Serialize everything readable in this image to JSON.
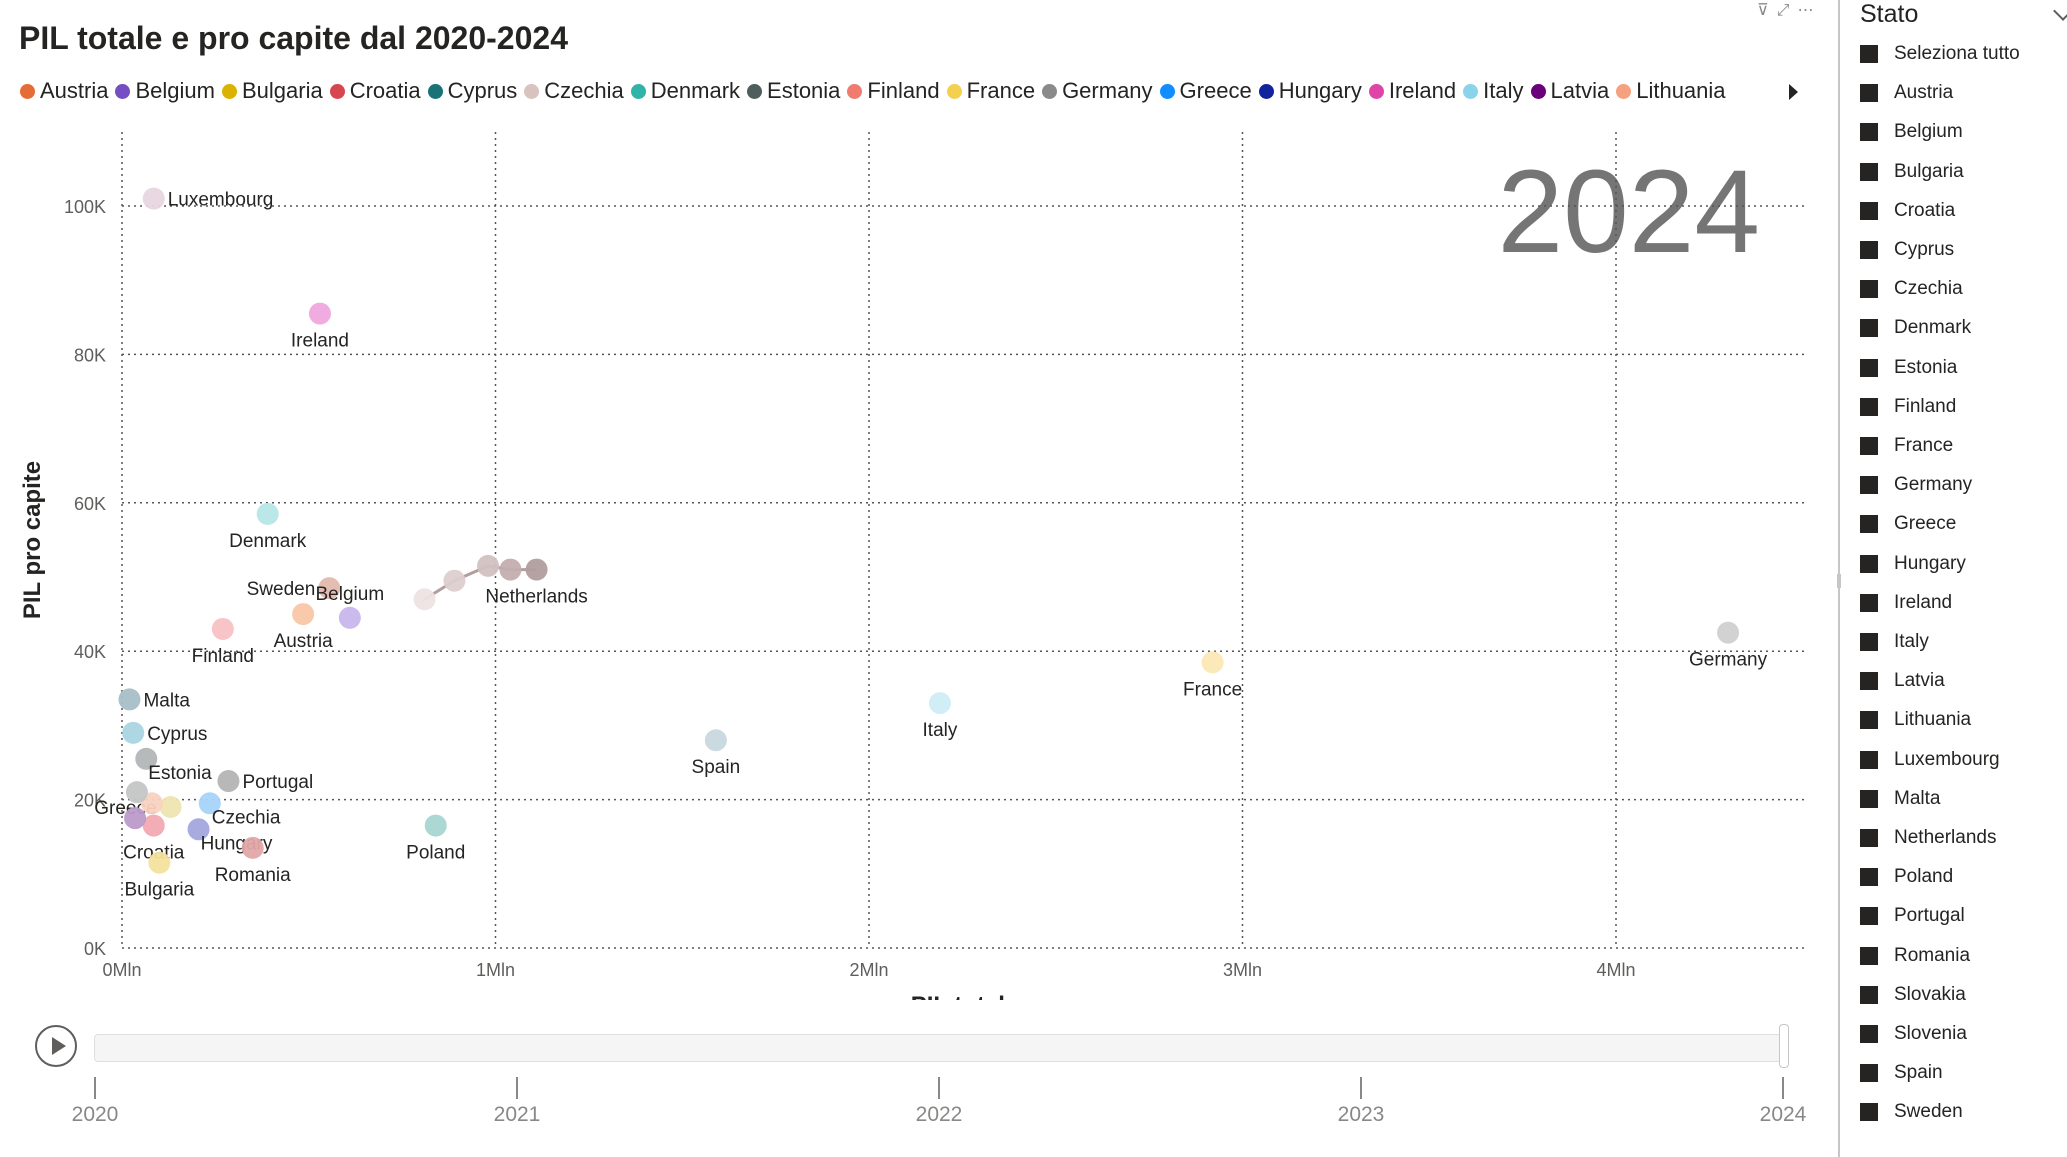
{
  "title": "PIL totale e pro capite dal 2020-2024",
  "header_icons": [
    "filter-icon",
    "focus-mode-icon",
    "more-options-icon"
  ],
  "legend": {
    "items": [
      {
        "name": "Austria",
        "color": "#E66C37"
      },
      {
        "name": "Belgium",
        "color": "#744EC2"
      },
      {
        "name": "Bulgaria",
        "color": "#D9B300"
      },
      {
        "name": "Croatia",
        "color": "#D64550"
      },
      {
        "name": "Cyprus",
        "color": "#197278"
      },
      {
        "name": "Czechia",
        "color": "#D9C2BF"
      },
      {
        "name": "Denmark",
        "color": "#2FB4A7"
      },
      {
        "name": "Estonia",
        "color": "#4F5D5D"
      },
      {
        "name": "Finland",
        "color": "#F07C70"
      },
      {
        "name": "France",
        "color": "#F5CF4E"
      },
      {
        "name": "Germany",
        "color": "#8A8A8A"
      },
      {
        "name": "Greece",
        "color": "#118DFF"
      },
      {
        "name": "Hungary",
        "color": "#12239E"
      },
      {
        "name": "Ireland",
        "color": "#E044A7"
      },
      {
        "name": "Italy",
        "color": "#8AD4EB"
      },
      {
        "name": "Latvia",
        "color": "#6B007B"
      },
      {
        "name": "Lithuania",
        "color": "#F5A07F"
      }
    ]
  },
  "chart_data": {
    "type": "scatter",
    "title": "PIL totale e pro capite dal 2020-2024",
    "xlabel": "PIL totale",
    "ylabel": "PIL pro capite",
    "xlim": [
      0,
      4.8
    ],
    "ylim": [
      0,
      110
    ],
    "x_unit": "Mln",
    "y_unit": "K",
    "x_ticks": [
      0,
      1,
      2,
      3,
      4
    ],
    "x_tick_labels": [
      "0Mln",
      "1Mln",
      "2Mln",
      "3Mln",
      "4Mln"
    ],
    "y_ticks": [
      0,
      20,
      40,
      60,
      80,
      100
    ],
    "y_tick_labels": [
      "0K",
      "20K",
      "40K",
      "60K",
      "80K",
      "100K"
    ],
    "grid": true,
    "grid_style": "dotted",
    "current_year": "2024",
    "points": [
      {
        "label": "Luxembourg",
        "x": 0.085,
        "y": 101,
        "color": "#E8D5DF",
        "label_pos": "right"
      },
      {
        "label": "Ireland",
        "x": 0.53,
        "y": 85.5,
        "color": "#EFA7DE",
        "label_pos": "below"
      },
      {
        "label": "Denmark",
        "x": 0.39,
        "y": 58.5,
        "color": "#B6E6E7",
        "label_pos": "below"
      },
      {
        "label": "Sweden",
        "x": 0.555,
        "y": 48.5,
        "color": "#E2B9AE",
        "label_pos": "left"
      },
      {
        "label": "Belgium",
        "x": 0.61,
        "y": 44.5,
        "color": "#C7B6EC",
        "label_pos": "above"
      },
      {
        "label": "Austria",
        "x": 0.485,
        "y": 45,
        "color": "#F8C6A7",
        "label_pos": "below"
      },
      {
        "label": "Finland",
        "x": 0.27,
        "y": 43,
        "color": "#F9C1C4",
        "label_pos": "below"
      },
      {
        "label": "Malta",
        "x": 0.02,
        "y": 33.5,
        "color": "#A8BFC8",
        "label_pos": "right"
      },
      {
        "label": "Cyprus",
        "x": 0.03,
        "y": 29,
        "color": "#A9D5E1",
        "label_pos": "right"
      },
      {
        "label": "Estonia",
        "x": 0.065,
        "y": 25.5,
        "color": "#B2B6B6",
        "label_pos": "belowright"
      },
      {
        "label": "Portugal",
        "x": 0.285,
        "y": 22.5,
        "color": "#B4B4B4",
        "label_pos": "right"
      },
      {
        "label": "Greece",
        "x": 0.13,
        "y": 19,
        "color": "#EFE4B0",
        "label_pos": "left"
      },
      {
        "label": "Czechia",
        "x": 0.235,
        "y": 19.5,
        "color": "#A7D3F9",
        "label_pos": "belowright"
      },
      {
        "label": "Croatia",
        "x": 0.085,
        "y": 16.5,
        "color": "#F2A9B0",
        "label_pos": "below"
      },
      {
        "label": "Latvia",
        "x": 0.035,
        "y": 17.5,
        "color": "#BC9AC8",
        "label_pos": "none"
      },
      {
        "label": "Lithuania",
        "x": 0.08,
        "y": 19.5,
        "color": "#F9D2C0",
        "label_pos": "none"
      },
      {
        "label": "Slovakia",
        "x": 0.04,
        "y": 21,
        "color": "#C4C6C6",
        "label_pos": "none"
      },
      {
        "label": "Hungary",
        "x": 0.205,
        "y": 16,
        "color": "#A2A6DE",
        "label_pos": "belowright"
      },
      {
        "label": "Romania",
        "x": 0.35,
        "y": 13.5,
        "color": "#E2A6A6",
        "label_pos": "below"
      },
      {
        "label": "Bulgaria",
        "x": 0.1,
        "y": 11.5,
        "color": "#F3E29C",
        "label_pos": "below"
      },
      {
        "label": "Poland",
        "x": 0.84,
        "y": 16.5,
        "color": "#A8D6D2",
        "label_pos": "below"
      },
      {
        "label": "Spain",
        "x": 1.59,
        "y": 28,
        "color": "#C8D8DE",
        "label_pos": "below"
      },
      {
        "label": "Italy",
        "x": 2.19,
        "y": 33,
        "color": "#CFEDF6",
        "label_pos": "below"
      },
      {
        "label": "France",
        "x": 2.92,
        "y": 38.5,
        "color": "#FBE8B5",
        "label_pos": "below"
      },
      {
        "label": "Germany",
        "x": 4.3,
        "y": 42.5,
        "color": "#D0D0D0",
        "label_pos": "below"
      }
    ],
    "trail": {
      "label": "Netherlands",
      "color": "#B19E9E",
      "x": [
        0.81,
        0.89,
        0.98,
        1.04,
        1.11
      ],
      "y": [
        47,
        49.5,
        51.5,
        51,
        51
      ],
      "point_colors": [
        "#EDE3E3",
        "#DDCFCF",
        "#D2C1C1",
        "#C3AEAE",
        "#B19E9E"
      ]
    }
  },
  "play_axis": {
    "years": [
      "2020",
      "2021",
      "2022",
      "2023",
      "2024"
    ],
    "current": "2024",
    "progress": 1.0
  },
  "slicer": {
    "title": "Stato",
    "items": [
      "Seleziona tutto",
      "Austria",
      "Belgium",
      "Bulgaria",
      "Croatia",
      "Cyprus",
      "Czechia",
      "Denmark",
      "Estonia",
      "Finland",
      "France",
      "Germany",
      "Greece",
      "Hungary",
      "Ireland",
      "Italy",
      "Latvia",
      "Lithuania",
      "Luxembourg",
      "Malta",
      "Netherlands",
      "Poland",
      "Portugal",
      "Romania",
      "Slovakia",
      "Slovenia",
      "Spain",
      "Sweden"
    ]
  }
}
